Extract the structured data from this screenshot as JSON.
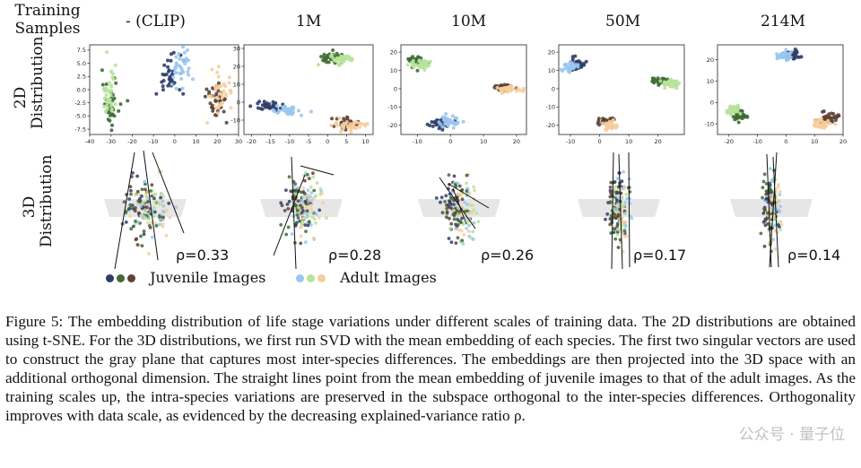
{
  "header": {
    "training_samples": "Training\nSamples",
    "columns": [
      "- (CLIP)",
      "1M",
      "10M",
      "50M",
      "214M"
    ]
  },
  "row_labels": {
    "row2d": "2D\nDistribution",
    "row3d": "3D\nDistribution"
  },
  "rho_values": [
    "ρ=0.33",
    "ρ=0.28",
    "ρ=0.26",
    "ρ=0.17",
    "ρ=0.14"
  ],
  "legend": {
    "juvenile": "Juvenile Images",
    "adult": "Adult Images"
  },
  "colors": {
    "juvenile": [
      "#2f3e69",
      "#3f6b36",
      "#5e4335"
    ],
    "adult": [
      "#9ac6ef",
      "#b7e39a",
      "#f6cd9c"
    ]
  },
  "chart_data": [
    {
      "type": "scatter",
      "title": "- (CLIP)",
      "x_ticks": [
        "-40",
        "-30",
        "-20",
        "-10",
        "0",
        "10",
        "20",
        "30"
      ],
      "xlim": [
        -40,
        30
      ],
      "y_ticks": [
        "7.5",
        "5.0",
        "2.5",
        "0.0",
        "-2.5",
        "-5.0",
        "-7.5"
      ],
      "ylim": [
        -8.5,
        8.5
      ],
      "clusters": [
        {
          "group": "juvenile",
          "c": 1,
          "x": -30,
          "y": -3,
          "sx": 2,
          "sy": 2.3
        },
        {
          "group": "adult",
          "c": 1,
          "x": -31,
          "y": -0.5,
          "sx": 1.8,
          "sy": 2.3
        },
        {
          "group": "juvenile",
          "c": 0,
          "x": -3,
          "y": 2.5,
          "sx": 3,
          "sy": 2.2
        },
        {
          "group": "adult",
          "c": 0,
          "x": 3,
          "y": 4,
          "sx": 3,
          "sy": 2.3
        },
        {
          "group": "juvenile",
          "c": 2,
          "x": 20,
          "y": -2,
          "sx": 2.5,
          "sy": 1.8
        },
        {
          "group": "adult",
          "c": 2,
          "x": 22,
          "y": 0,
          "sx": 2.5,
          "sy": 1.8
        }
      ]
    },
    {
      "type": "scatter",
      "title": "1M",
      "x_ticks": [
        "-20",
        "-15",
        "-10",
        "-5",
        "0",
        "5",
        "10"
      ],
      "xlim": [
        -22,
        12
      ],
      "y_ticks": [
        "30",
        "20",
        "10",
        "0",
        "-10"
      ],
      "ylim": [
        -18,
        32
      ],
      "clusters": [
        {
          "group": "juvenile",
          "c": 1,
          "x": 1,
          "y": 25,
          "sx": 1.5,
          "sy": 1.3
        },
        {
          "group": "adult",
          "c": 1,
          "x": 4,
          "y": 24,
          "sx": 1.5,
          "sy": 1.3
        },
        {
          "group": "juvenile",
          "c": 0,
          "x": -16,
          "y": -2,
          "sx": 2.2,
          "sy": 1.2
        },
        {
          "group": "adult",
          "c": 0,
          "x": -10,
          "y": -5,
          "sx": 1.8,
          "sy": 1.3
        },
        {
          "group": "juvenile",
          "c": 2,
          "x": 5,
          "y": -12,
          "sx": 2.2,
          "sy": 1.8
        },
        {
          "group": "adult",
          "c": 2,
          "x": 6,
          "y": -13,
          "sx": 2.2,
          "sy": 1.8
        }
      ]
    },
    {
      "type": "scatter",
      "title": "10M",
      "x_ticks": [
        "-10",
        "0",
        "10",
        "20"
      ],
      "xlim": [
        -15,
        23
      ],
      "y_ticks": [
        "20",
        "10",
        "0",
        "-10",
        "-20"
      ],
      "ylim": [
        -25,
        24
      ],
      "clusters": [
        {
          "group": "juvenile",
          "c": 1,
          "x": -10,
          "y": 15,
          "sx": 1.6,
          "sy": 1.6
        },
        {
          "group": "adult",
          "c": 1,
          "x": -9,
          "y": 13,
          "sx": 1.6,
          "sy": 1.6
        },
        {
          "group": "juvenile",
          "c": 2,
          "x": 16,
          "y": 1,
          "sx": 1.8,
          "sy": 0.9
        },
        {
          "group": "adult",
          "c": 2,
          "x": 18,
          "y": 0,
          "sx": 1.8,
          "sy": 0.9
        },
        {
          "group": "juvenile",
          "c": 0,
          "x": -3,
          "y": -19,
          "sx": 1.6,
          "sy": 1.5
        },
        {
          "group": "adult",
          "c": 0,
          "x": 0,
          "y": -18,
          "sx": 1.5,
          "sy": 1.5
        }
      ]
    },
    {
      "type": "scatter",
      "title": "50M",
      "x_ticks": [
        "-10",
        "0",
        "10",
        "20"
      ],
      "xlim": [
        -14,
        29
      ],
      "y_ticks": [
        "20",
        "10",
        "0",
        "-10",
        "-20"
      ],
      "ylim": [
        -25,
        24
      ],
      "clusters": [
        {
          "group": "juvenile",
          "c": 0,
          "x": -8,
          "y": 14,
          "sx": 1.3,
          "sy": 1.6
        },
        {
          "group": "adult",
          "c": 0,
          "x": -10,
          "y": 12,
          "sx": 1.3,
          "sy": 1.4
        },
        {
          "group": "juvenile",
          "c": 1,
          "x": 21,
          "y": 4,
          "sx": 1.5,
          "sy": 1
        },
        {
          "group": "adult",
          "c": 1,
          "x": 24,
          "y": 3,
          "sx": 1.5,
          "sy": 1
        },
        {
          "group": "juvenile",
          "c": 2,
          "x": 2,
          "y": -18,
          "sx": 1.3,
          "sy": 1.1
        },
        {
          "group": "adult",
          "c": 2,
          "x": 4,
          "y": -20,
          "sx": 1.3,
          "sy": 1.1
        }
      ]
    },
    {
      "type": "scatter",
      "title": "214M",
      "x_ticks": [
        "-20",
        "-10",
        "0",
        "10",
        "20"
      ],
      "xlim": [
        -24,
        20
      ],
      "y_ticks": [
        "20",
        "10",
        "0",
        "-10"
      ],
      "ylim": [
        -15,
        27
      ],
      "clusters": [
        {
          "group": "juvenile",
          "c": 0,
          "x": 2,
          "y": 22,
          "sx": 1.6,
          "sy": 1
        },
        {
          "group": "adult",
          "c": 0,
          "x": -1,
          "y": 22,
          "sx": 1.6,
          "sy": 1
        },
        {
          "group": "juvenile",
          "c": 1,
          "x": -16,
          "y": -6,
          "sx": 1.4,
          "sy": 1.2
        },
        {
          "group": "adult",
          "c": 1,
          "x": -19,
          "y": -4,
          "sx": 1.4,
          "sy": 1.2
        },
        {
          "group": "juvenile",
          "c": 2,
          "x": 15,
          "y": -7,
          "sx": 1.6,
          "sy": 1.2
        },
        {
          "group": "adult",
          "c": 2,
          "x": 13,
          "y": -10,
          "sx": 1.6,
          "sy": 1.2
        }
      ]
    }
  ],
  "caption": {
    "label": "Figure 5:",
    "text": "The embedding distribution of life stage variations under different scales of training data. The 2D distributions are obtained using t-SNE. For the 3D distributions, we first run SVD with the mean embedding of each species. The first two singular vectors are used to construct the gray plane that captures most inter-species differences. The embeddings are then projected into the 3D space with an additional orthogonal dimension. The straight lines point from the mean embedding of juvenile images to that of the adult images. As the training scales up, the intra-species variations are preserved in the subspace orthogonal to the inter-species differences. Orthogonality improves with data scale, as evidenced by the decreasing explained-variance ratio ρ."
  },
  "watermark": "公众号 · 量子位"
}
